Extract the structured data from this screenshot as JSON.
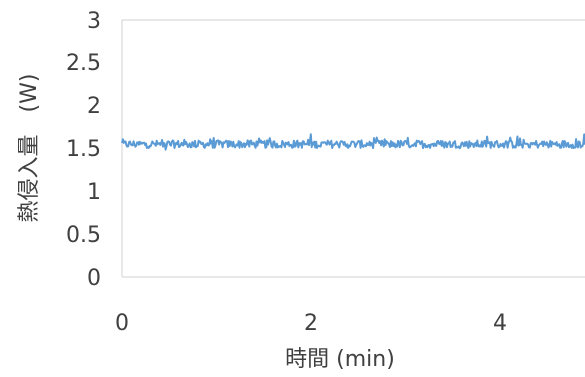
{
  "chart_data": {
    "type": "line",
    "title": "",
    "xlabel": "時間 (min)",
    "ylabel": "熱侵入量　(W)",
    "xlim": [
      0,
      4.9
    ],
    "ylim": [
      0,
      3
    ],
    "x_ticks": [
      "0",
      "2",
      "4"
    ],
    "y_ticks": [
      "0",
      "0.5",
      "1",
      "1.5",
      "2",
      "2.5",
      "3"
    ],
    "grid": false,
    "legend": "none",
    "series": [
      {
        "color": "#5b9bd5",
        "x_range": [
          0,
          4.9
        ],
        "mean": 1.55,
        "noise_band": [
          1.46,
          1.67
        ]
      }
    ]
  }
}
